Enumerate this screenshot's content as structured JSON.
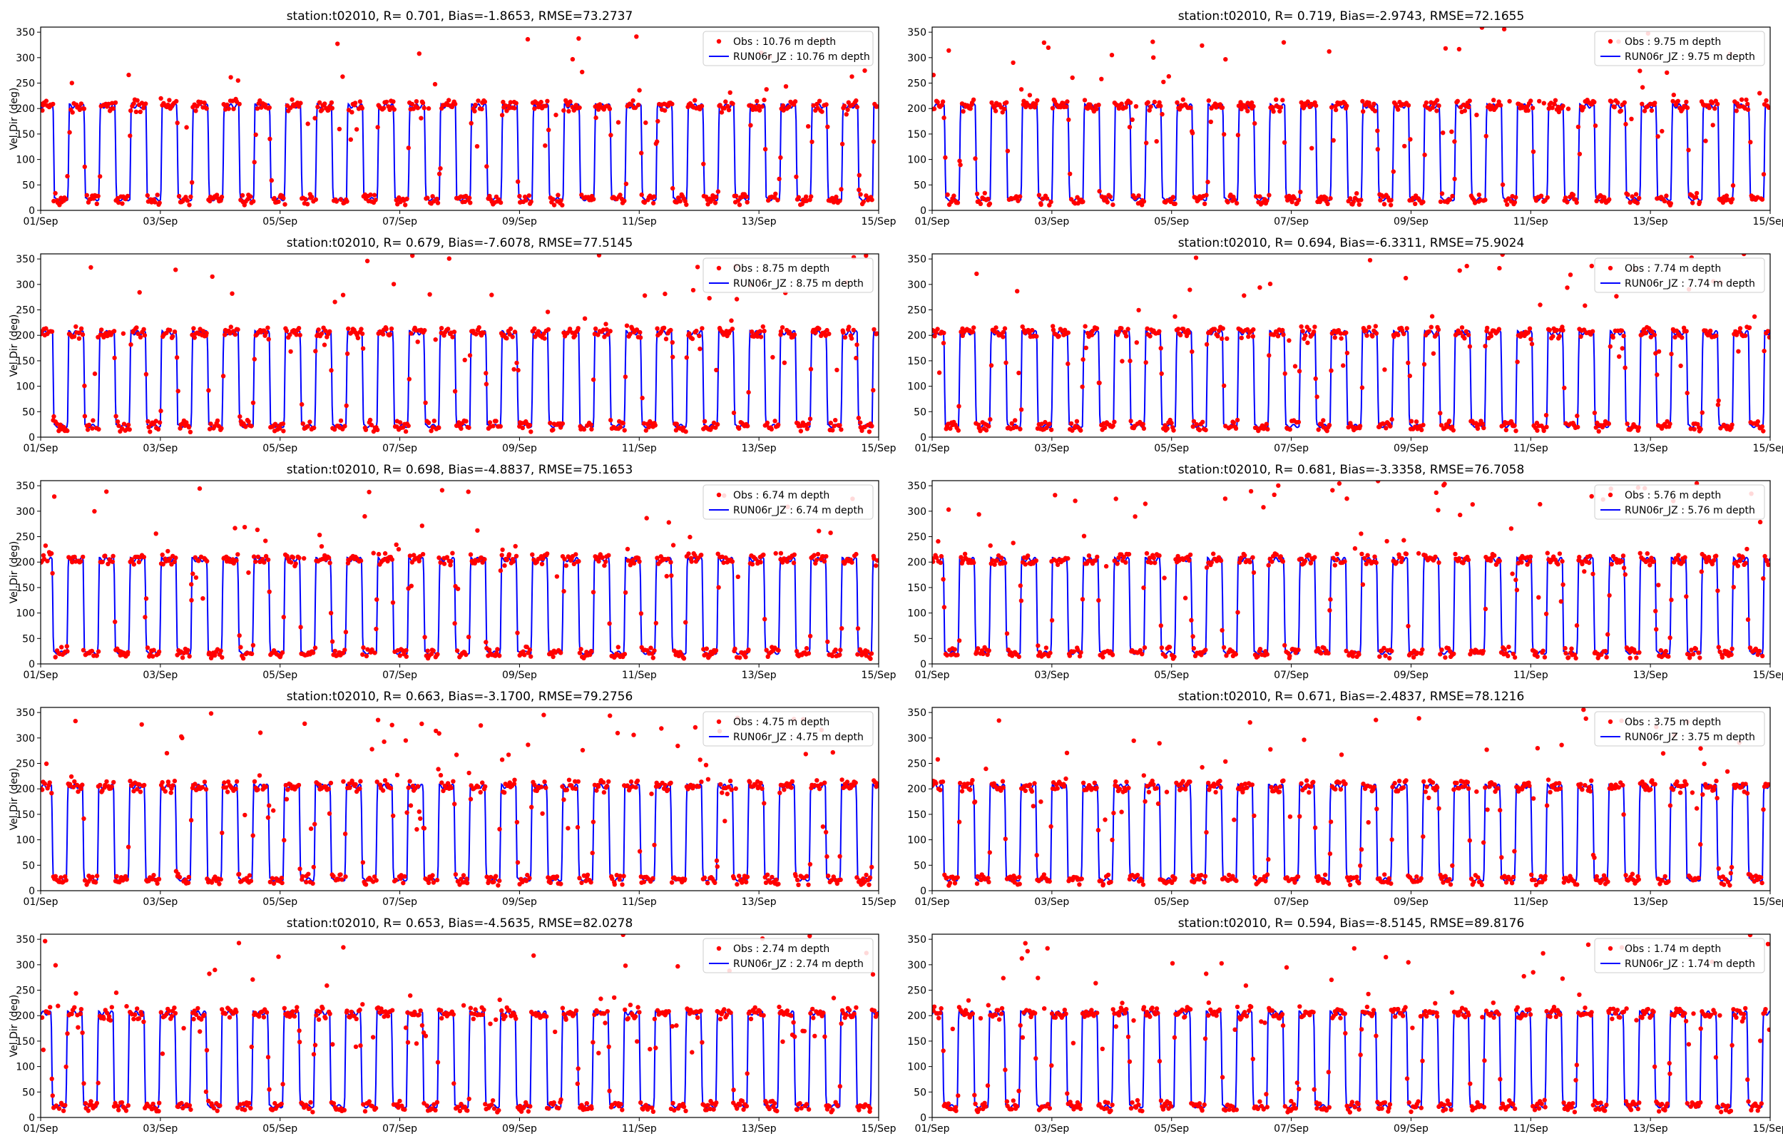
{
  "figure": {
    "ylabel": "Vel.Dir (deg)",
    "x_tick_labels": [
      "01/Sep",
      "03/Sep",
      "05/Sep",
      "07/Sep",
      "09/Sep",
      "11/Sep",
      "13/Sep",
      "15/Sep"
    ],
    "y_tick_labels": [
      "0",
      "50",
      "100",
      "150",
      "200",
      "250",
      "300",
      "350"
    ]
  },
  "colors": {
    "obs": "#ff0000",
    "model": "#0000ff",
    "axes": "#000000"
  },
  "chart_data": [
    {
      "type": "line",
      "title": "station:t02010, R= 0.701, Bias=-1.8653, RMSE=73.2737",
      "obs_label": "Obs : 10.76 m depth",
      "model_label": "RUN06r_JZ : 10.76 m depth",
      "depth_m": 10.76,
      "R": 0.701,
      "Bias": -1.8653,
      "RMSE": 73.2737,
      "xlabel": "",
      "ylabel": "Vel.Dir (deg)",
      "xlim": [
        "2000-09-01",
        "2000-09-15"
      ],
      "ylim": [
        0,
        360
      ]
    },
    {
      "type": "line",
      "title": "station:t02010, R= 0.719, Bias=-2.9743, RMSE=72.1655",
      "obs_label": "Obs : 9.75 m depth",
      "model_label": "RUN06r_JZ : 9.75 m depth",
      "depth_m": 9.75,
      "R": 0.719,
      "Bias": -2.9743,
      "RMSE": 72.1655,
      "xlabel": "",
      "ylabel": "",
      "xlim": [
        "2000-09-01",
        "2000-09-15"
      ],
      "ylim": [
        0,
        360
      ]
    },
    {
      "type": "line",
      "title": "station:t02010, R= 0.679, Bias=-7.6078, RMSE=77.5145",
      "obs_label": "Obs : 8.75 m depth",
      "model_label": "RUN06r_JZ : 8.75 m depth",
      "depth_m": 8.75,
      "R": 0.679,
      "Bias": -7.6078,
      "RMSE": 77.5145,
      "xlabel": "",
      "ylabel": "Vel.Dir (deg)",
      "xlim": [
        "2000-09-01",
        "2000-09-15"
      ],
      "ylim": [
        0,
        360
      ]
    },
    {
      "type": "line",
      "title": "station:t02010, R= 0.694, Bias=-6.3311, RMSE=75.9024",
      "obs_label": "Obs : 7.74 m depth",
      "model_label": "RUN06r_JZ : 7.74 m depth",
      "depth_m": 7.74,
      "R": 0.694,
      "Bias": -6.3311,
      "RMSE": 75.9024,
      "xlabel": "",
      "ylabel": "",
      "xlim": [
        "2000-09-01",
        "2000-09-15"
      ],
      "ylim": [
        0,
        360
      ]
    },
    {
      "type": "line",
      "title": "station:t02010, R= 0.698, Bias=-4.8837, RMSE=75.1653",
      "obs_label": "Obs : 6.74 m depth",
      "model_label": "RUN06r_JZ : 6.74 m depth",
      "depth_m": 6.74,
      "R": 0.698,
      "Bias": -4.8837,
      "RMSE": 75.1653,
      "xlabel": "",
      "ylabel": "Vel.Dir (deg)",
      "xlim": [
        "2000-09-01",
        "2000-09-15"
      ],
      "ylim": [
        0,
        360
      ]
    },
    {
      "type": "line",
      "title": "station:t02010, R= 0.681, Bias=-3.3358, RMSE=76.7058",
      "obs_label": "Obs : 5.76 m depth",
      "model_label": "RUN06r_JZ : 5.76 m depth",
      "depth_m": 5.76,
      "R": 0.681,
      "Bias": -3.3358,
      "RMSE": 76.7058,
      "xlabel": "",
      "ylabel": "",
      "xlim": [
        "2000-09-01",
        "2000-09-15"
      ],
      "ylim": [
        0,
        360
      ]
    },
    {
      "type": "line",
      "title": "station:t02010, R= 0.663, Bias=-3.1700, RMSE=79.2756",
      "obs_label": "Obs : 4.75 m depth",
      "model_label": "RUN06r_JZ : 4.75 m depth",
      "depth_m": 4.75,
      "R": 0.663,
      "Bias": -3.17,
      "RMSE": 79.2756,
      "xlabel": "",
      "ylabel": "Vel.Dir (deg)",
      "xlim": [
        "2000-09-01",
        "2000-09-15"
      ],
      "ylim": [
        0,
        360
      ]
    },
    {
      "type": "line",
      "title": "station:t02010, R= 0.671, Bias=-2.4837, RMSE=78.1216",
      "obs_label": "Obs : 3.75 m depth",
      "model_label": "RUN06r_JZ : 3.75 m depth",
      "depth_m": 3.75,
      "R": 0.671,
      "Bias": -2.4837,
      "RMSE": 78.1216,
      "xlabel": "",
      "ylabel": "",
      "xlim": [
        "2000-09-01",
        "2000-09-15"
      ],
      "ylim": [
        0,
        360
      ]
    },
    {
      "type": "line",
      "title": "station:t02010, R= 0.653, Bias=-4.5635, RMSE=82.0278",
      "obs_label": "Obs : 2.74 m depth",
      "model_label": "RUN06r_JZ : 2.74 m depth",
      "depth_m": 2.74,
      "R": 0.653,
      "Bias": -4.5635,
      "RMSE": 82.0278,
      "xlabel": "",
      "ylabel": "Vel.Dir (deg)",
      "xlim": [
        "2000-09-01",
        "2000-09-15"
      ],
      "ylim": [
        0,
        360
      ]
    },
    {
      "type": "line",
      "title": "station:t02010, R= 0.594, Bias=-8.5145, RMSE=89.8176",
      "obs_label": "Obs : 1.74 m depth",
      "model_label": "RUN06r_JZ : 1.74 m depth",
      "depth_m": 1.74,
      "R": 0.594,
      "Bias": -8.5145,
      "RMSE": 89.8176,
      "xlabel": "",
      "ylabel": "",
      "xlim": [
        "2000-09-01",
        "2000-09-15"
      ],
      "ylim": [
        0,
        360
      ]
    }
  ]
}
